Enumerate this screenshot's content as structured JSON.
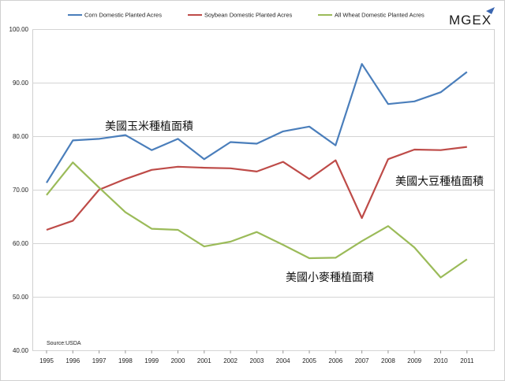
{
  "logo": {
    "text": "MGEX"
  },
  "chart_data": {
    "type": "line",
    "categories": [
      "1995",
      "1996",
      "1997",
      "1998",
      "1999",
      "2000",
      "2001",
      "2002",
      "2003",
      "2004",
      "2005",
      "2006",
      "2007",
      "2008",
      "2009",
      "2010",
      "2011"
    ],
    "series": [
      {
        "name": "Corn Domestic Planted Acres",
        "color": "#4a7ebb",
        "values": [
          71.3,
          79.2,
          79.5,
          80.2,
          77.4,
          79.5,
          75.7,
          78.9,
          78.6,
          80.9,
          81.8,
          78.3,
          93.5,
          86.0,
          86.5,
          88.2,
          92.0
        ]
      },
      {
        "name": "Soybean Domestic Planted Acres",
        "color": "#be4b48",
        "values": [
          62.5,
          64.2,
          70.0,
          72.0,
          73.7,
          74.3,
          74.1,
          74.0,
          73.4,
          75.2,
          72.0,
          75.5,
          64.7,
          75.7,
          77.5,
          77.4,
          78.0
        ]
      },
      {
        "name": "All Wheat Domestic Planted Acres",
        "color": "#9bbb59",
        "values": [
          69.0,
          75.1,
          70.4,
          65.8,
          62.7,
          62.5,
          59.4,
          60.3,
          62.1,
          59.7,
          57.2,
          57.3,
          60.4,
          63.2,
          59.2,
          53.6,
          57.0
        ]
      }
    ],
    "yticks": [
      "40.00",
      "50.00",
      "60.00",
      "70.00",
      "80.00",
      "90.00",
      "100.00"
    ],
    "ylim": [
      40,
      100
    ],
    "grid": true,
    "legend_position": "top",
    "source": "Source:USDA",
    "annotations": {
      "corn": "美國玉米種植面積",
      "soybean": "美國大豆種植面積",
      "wheat": "美國小麥種植面積"
    }
  }
}
